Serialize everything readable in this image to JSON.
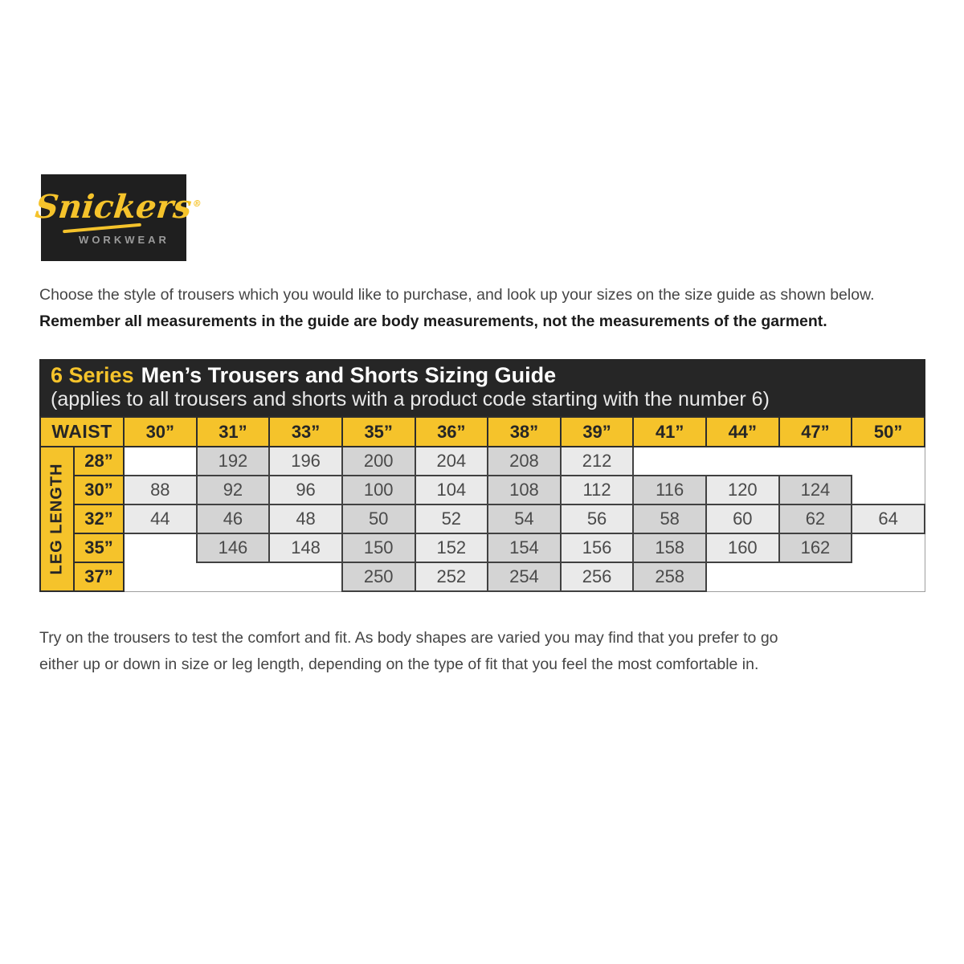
{
  "logo": {
    "brand": "Snickers",
    "registered": "®",
    "tagline": "WORKWEAR"
  },
  "intro": {
    "line1": "Choose the style of trousers which you would like to purchase, and look up your sizes on the size guide as shown below.",
    "line2": "Remember all measurements in the guide are body measurements, not the measurements of the garment."
  },
  "guide": {
    "series_highlight": "6 Series",
    "title": "Men’s Trousers and Shorts Sizing Guide",
    "subtitle": "(applies to all trousers and shorts with a product code starting with the number 6)",
    "corner_label": "WAIST",
    "axis_label": "LEG LENGTH",
    "waist_sizes": [
      "30”",
      "31”",
      "33”",
      "35”",
      "36”",
      "38”",
      "39”",
      "41”",
      "44”",
      "47”",
      "50”"
    ],
    "rows": [
      {
        "leg": "28”",
        "values": [
          "",
          "192",
          "196",
          "200",
          "204",
          "208",
          "212",
          "",
          "",
          "",
          ""
        ]
      },
      {
        "leg": "30”",
        "values": [
          "88",
          "92",
          "96",
          "100",
          "104",
          "108",
          "112",
          "116",
          "120",
          "124",
          ""
        ]
      },
      {
        "leg": "32”",
        "values": [
          "44",
          "46",
          "48",
          "50",
          "52",
          "54",
          "56",
          "58",
          "60",
          "62",
          "64"
        ]
      },
      {
        "leg": "35”",
        "values": [
          "",
          "146",
          "148",
          "150",
          "152",
          "154",
          "156",
          "158",
          "160",
          "162",
          ""
        ]
      },
      {
        "leg": "37”",
        "values": [
          "",
          "",
          "",
          "250",
          "252",
          "254",
          "256",
          "258",
          "",
          "",
          ""
        ]
      }
    ]
  },
  "outro": {
    "line1": "Try on the trousers to test the comfort and fit. As body shapes are varied you may find that you prefer to go",
    "line2": "either up or down in size or leg length, depending on the type of fit that you feel the most comfortable in."
  },
  "colors": {
    "accent_yellow": "#F5C32B",
    "header_black": "#262626",
    "cell_light": "#EAEAEA",
    "cell_dark": "#D4D4D4",
    "grid_border": "#414141"
  }
}
